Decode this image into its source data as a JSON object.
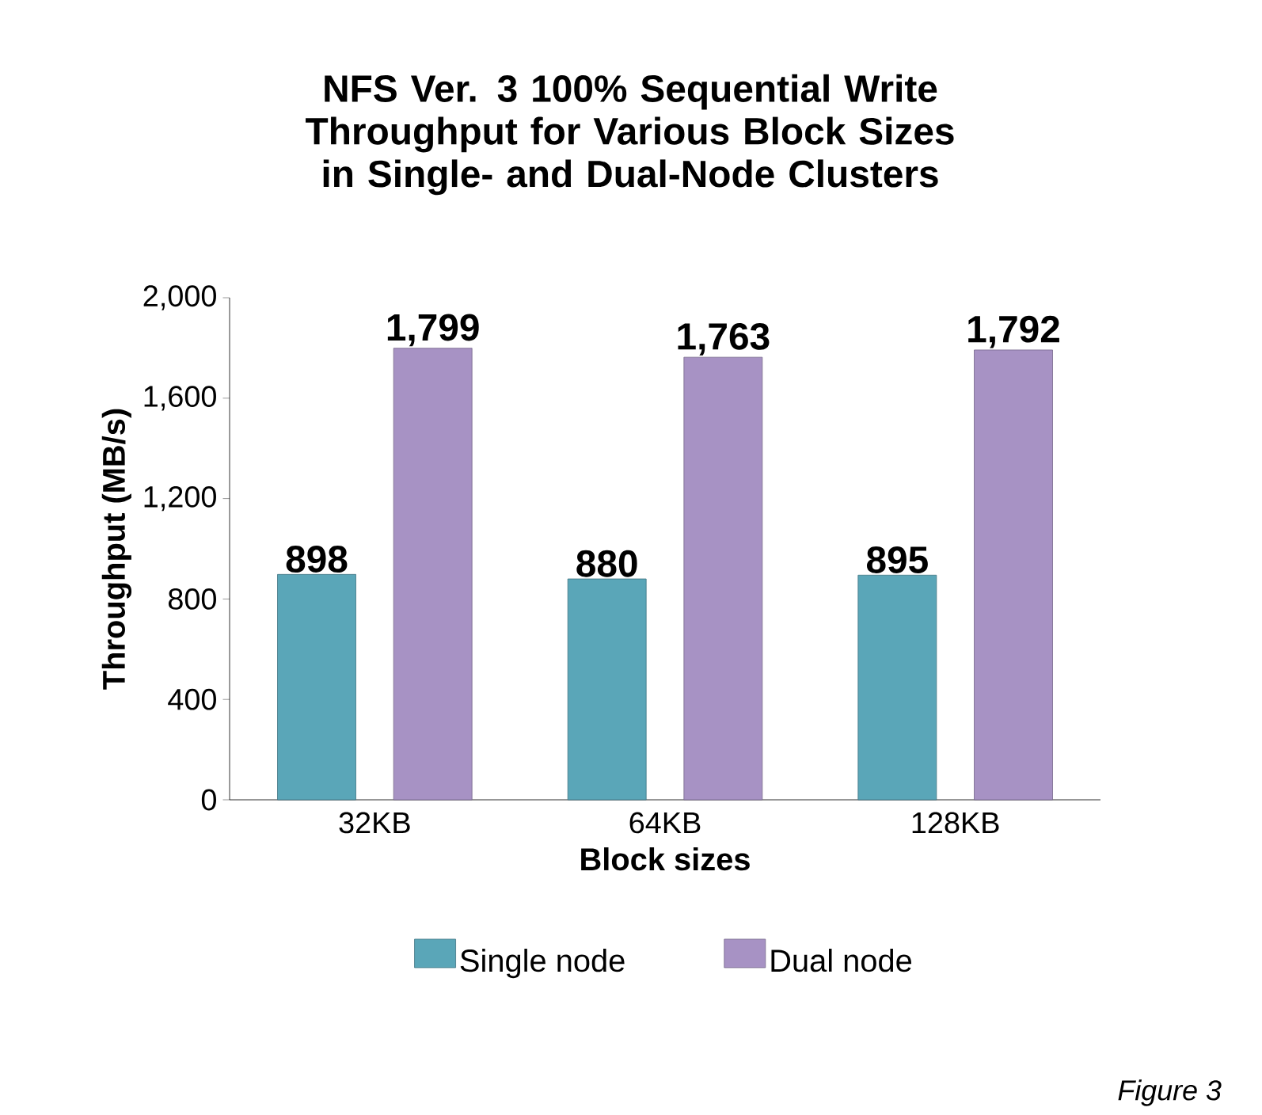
{
  "chart_data": {
    "type": "bar",
    "title": "NFS Ver. 3 100% Sequential Write Throughput for Various Block Sizes in Single- and Dual-Node Clusters",
    "xlabel": "Block sizes",
    "ylabel": "Throughput (MB/s)",
    "categories": [
      "32KB",
      "64KB",
      "128KB"
    ],
    "series": [
      {
        "name": "Single node",
        "color": "#5aa6b8",
        "values": [
          898,
          880,
          895
        ],
        "value_labels": [
          "898",
          "880",
          "895"
        ]
      },
      {
        "name": "Dual node",
        "color": "#a792c4",
        "values": [
          1799,
          1763,
          1792
        ],
        "value_labels": [
          "1,799",
          "1,763",
          "1,792"
        ]
      }
    ],
    "ylim": [
      0,
      2000
    ],
    "yticks": [
      0,
      400,
      800,
      {
        "value": 1200,
        "label": "1,200"
      },
      {
        "value": 1600,
        "label": "1,600"
      },
      {
        "value": 2000,
        "label": "2,000"
      }
    ],
    "grid": false,
    "legend": "bottom",
    "annotations": [
      "Figure 3"
    ]
  }
}
